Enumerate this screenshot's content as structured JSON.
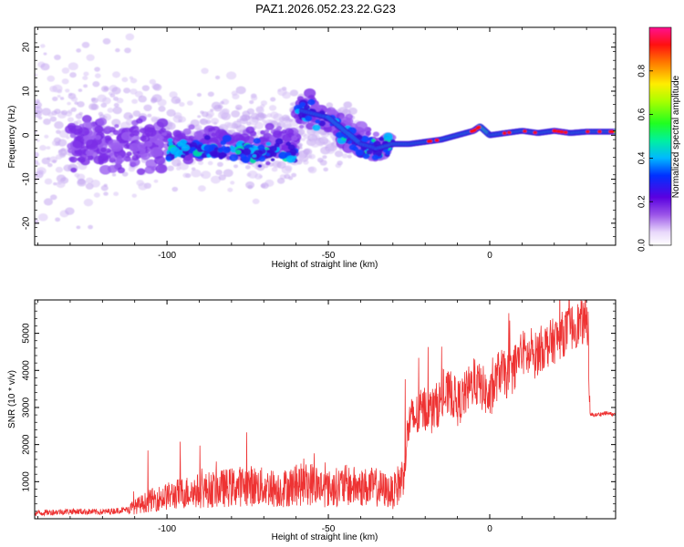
{
  "figure_title": "PAZ1.2026.052.23.22.G23",
  "chart_data": [
    {
      "type": "heatmap",
      "title": "PAZ1.2026.052.23.22.G23",
      "xlabel": "Height of straight line (km)",
      "ylabel": "Frequency (Hz)",
      "xlim": [
        -141,
        39
      ],
      "ylim": [
        -25,
        24.5
      ],
      "x_ticks": [
        -100,
        -50,
        0
      ],
      "x_tick_labels": [
        "-100",
        "-50",
        "0"
      ],
      "y_ticks": [
        -20,
        -10,
        0,
        10,
        20
      ],
      "y_tick_labels": [
        "-20",
        "-10",
        "0",
        "10",
        "20"
      ],
      "ridge": {
        "x": [
          -58,
          -50,
          -45,
          -40,
          -35,
          -30,
          -25,
          -20,
          -15,
          -10,
          -5,
          -3,
          0,
          5,
          10,
          15,
          20,
          25,
          30,
          39
        ],
        "y": [
          5.5,
          4,
          1,
          -2,
          -3,
          -2,
          -2,
          -1.5,
          -1,
          0,
          1,
          2,
          0,
          0.5,
          1,
          0.5,
          1,
          0.5,
          0.8,
          0.8
        ]
      },
      "colorbar": {
        "label": "Normalized spectral amplitude",
        "range": [
          0,
          1
        ],
        "ticks": [
          0.0,
          0.2,
          0.4,
          0.6,
          0.8
        ],
        "tick_labels": [
          "0.0",
          "0.2",
          "0.4",
          "0.6",
          "0.8"
        ]
      }
    },
    {
      "type": "line",
      "xlabel": "Height of straight line (km)",
      "ylabel": "SNR (10 * v/v)",
      "xlim": [
        -141,
        39
      ],
      "ylim": [
        0,
        5900
      ],
      "x_ticks": [
        -100,
        -50,
        0
      ],
      "x_tick_labels": [
        "-100",
        "-50",
        "0"
      ],
      "y_ticks": [
        1000,
        2000,
        3000,
        4000,
        5000
      ],
      "y_tick_labels": [
        "1000",
        "2000",
        "3000",
        "4000",
        "5000"
      ],
      "series": [
        {
          "name": "SNR",
          "color": "#ee3333",
          "x": [
            -141,
            -130,
            -120,
            -112,
            -105,
            -100,
            -95,
            -90,
            -85,
            -80,
            -75,
            -70,
            -65,
            -60,
            -55,
            -50,
            -45,
            -40,
            -35,
            -30,
            -27,
            -25,
            -22,
            -20,
            -18,
            -15,
            -12,
            -10,
            -8,
            -5,
            -2,
            0,
            3,
            6,
            10,
            13,
            16,
            20,
            23,
            26,
            29,
            30.5,
            31,
            33,
            36,
            39
          ],
          "y": [
            150,
            200,
            180,
            250,
            500,
            600,
            700,
            750,
            800,
            850,
            900,
            850,
            800,
            900,
            950,
            800,
            900,
            850,
            850,
            700,
            1100,
            2600,
            2800,
            3000,
            2900,
            3200,
            3400,
            3100,
            3300,
            3700,
            3500,
            3200,
            4000,
            3800,
            4500,
            4300,
            4600,
            4800,
            5000,
            5200,
            5300,
            5300,
            2800,
            2800,
            2850,
            2800
          ]
        }
      ]
    }
  ]
}
